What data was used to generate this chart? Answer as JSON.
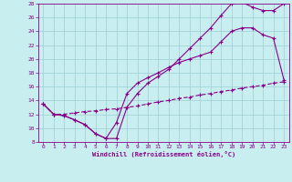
{
  "xlabel": "Windchill (Refroidissement éolien,°C)",
  "background_color": "#c8eef0",
  "grid_color": "#9ecdd4",
  "line_color": "#880088",
  "xlim": [
    -0.5,
    23.5
  ],
  "ylim": [
    8,
    28
  ],
  "xticks": [
    0,
    1,
    2,
    3,
    4,
    5,
    6,
    7,
    8,
    9,
    10,
    11,
    12,
    13,
    14,
    15,
    16,
    17,
    18,
    19,
    20,
    21,
    22,
    23
  ],
  "yticks": [
    8,
    10,
    12,
    14,
    16,
    18,
    20,
    22,
    24,
    26,
    28
  ],
  "curve1_x": [
    0,
    1,
    2,
    3,
    4,
    5,
    6,
    7,
    8,
    9,
    10,
    11,
    12,
    13,
    14,
    15,
    16,
    17,
    18,
    19,
    20,
    21,
    22,
    23
  ],
  "curve1_y": [
    13.5,
    12.0,
    11.8,
    11.2,
    10.5,
    9.2,
    8.5,
    10.8,
    15.0,
    16.5,
    17.3,
    18.0,
    18.8,
    19.5,
    20.0,
    20.5,
    21.0,
    22.5,
    24.0,
    24.5,
    24.5,
    23.5,
    23.0,
    17.0
  ],
  "curve2_x": [
    0,
    1,
    2,
    3,
    4,
    5,
    6,
    7,
    8,
    9,
    10,
    11,
    12,
    13,
    14,
    15,
    16,
    17,
    18,
    19,
    20,
    21,
    22,
    23
  ],
  "curve2_y": [
    13.5,
    12.0,
    11.8,
    11.2,
    10.5,
    9.2,
    8.5,
    8.5,
    13.0,
    15.0,
    16.5,
    17.5,
    18.5,
    20.0,
    21.5,
    23.0,
    24.5,
    26.3,
    28.0,
    28.2,
    27.5,
    27.0,
    27.0,
    28.0
  ],
  "curve3_x": [
    0,
    1,
    2,
    3,
    4,
    5,
    6,
    7,
    8,
    9,
    10,
    11,
    12,
    13,
    14,
    15,
    16,
    17,
    18,
    19,
    20,
    21,
    22,
    23
  ],
  "curve3_y": [
    13.5,
    12.0,
    12.0,
    12.2,
    12.4,
    12.5,
    12.7,
    12.8,
    13.0,
    13.2,
    13.5,
    13.8,
    14.0,
    14.3,
    14.5,
    14.8,
    15.0,
    15.3,
    15.5,
    15.8,
    16.0,
    16.2,
    16.5,
    16.7
  ]
}
